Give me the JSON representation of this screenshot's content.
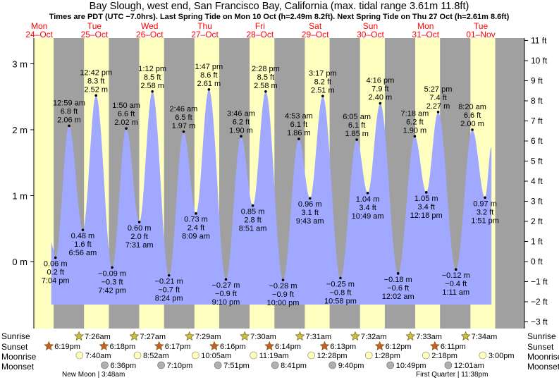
{
  "title": "Bay Slough, west end, San Francisco Bay, California (max. tidal range 3.61m 11.8ft)",
  "subtitle": "Times are PDT (UTC −7.0hrs). Last Spring Tide on Mon 10 Oct (h=2.49m 8.2ft). Next Spring Tide on Thu 27 Oct (h=2.61m 8.6ft)",
  "colors": {
    "water": "#a0a8ff",
    "day": "#ffffc0",
    "night": "#a0a0a0",
    "daylabel": "#ff0000",
    "sun": "#c8c040",
    "sunset": "#c86020",
    "moon": "#ffffc0",
    "moonset": "#b0b0b0"
  },
  "days": [
    {
      "dow": "Mon",
      "date": "24–Oct"
    },
    {
      "dow": "Tue",
      "date": "25–Oct"
    },
    {
      "dow": "Wed",
      "date": "26–Oct"
    },
    {
      "dow": "Thu",
      "date": "27–Oct"
    },
    {
      "dow": "Fri",
      "date": "28–Oct"
    },
    {
      "dow": "Sat",
      "date": "29–Oct"
    },
    {
      "dow": "Sun",
      "date": "30–Oct"
    },
    {
      "dow": "Mon",
      "date": "31–Oct"
    },
    {
      "dow": "Tue",
      "date": "01–Nov"
    }
  ],
  "row_labels": {
    "sunrise": "Sunrise",
    "sunset": "Sunset",
    "moonrise": "Moonrise",
    "moonset": "Moonset"
  },
  "sunrise": [
    "7:26am",
    "7:27am",
    "7:29am",
    "7:30am",
    "7:31am",
    "7:32am",
    "7:33am",
    "7:34am"
  ],
  "sunset": [
    "6:19pm",
    "6:18pm",
    "6:17pm",
    "6:16pm",
    "6:14pm",
    "6:13pm",
    "6:12pm",
    "6:11pm"
  ],
  "moonrise": [
    "7:40am",
    "8:52am",
    "10:05am",
    "11:19am",
    "12:28pm",
    "1:28pm",
    "2:18pm",
    "3:00pm"
  ],
  "moonset": [
    "6:36pm",
    "7:10pm",
    "7:51pm",
    "8:41pm",
    "9:40pm",
    "10:49pm",
    "12:01am"
  ],
  "moon_phases": [
    "New Moon | 3:48am",
    "First Quarter | 11:38pm"
  ],
  "chart_data": {
    "type": "area",
    "title": "Bay Slough, west end, San Francisco Bay, California (max. tidal range 3.61m 11.8ft)",
    "y_left_unit": "m",
    "y_left_ticks": [
      "0 m",
      "1 m",
      "2 m",
      "3 m"
    ],
    "y_right_unit": "ft",
    "y_right_ticks": [
      "−3 ft",
      "−2 ft",
      "−1 ft",
      "0 ft",
      "1 ft",
      "2 ft",
      "3 ft",
      "4 ft",
      "5 ft",
      "6 ft",
      "7 ft",
      "8 ft",
      "9 ft",
      "10 ft",
      "11 ft"
    ],
    "x_range": [
      "24-Oct",
      "01-Nov"
    ],
    "tides": [
      {
        "day": 0,
        "time": "7:04 pm",
        "m": "0.06 m",
        "ft": "0.2 ft",
        "hours": 19.07,
        "h": 0.06,
        "label": "below"
      },
      {
        "day": 1,
        "time": "12:59 am",
        "m": "2.06 m",
        "ft": "6.8 ft",
        "hours": 0.98,
        "h": 2.06,
        "label": "above"
      },
      {
        "day": 1,
        "time": "6:56 am",
        "m": "0.48 m",
        "ft": "1.6 ft",
        "hours": 6.93,
        "h": 0.48,
        "label": "below"
      },
      {
        "day": 1,
        "time": "12:42 pm",
        "m": "2.52 m",
        "ft": "8.3 ft",
        "hours": 12.7,
        "h": 2.52,
        "label": "above"
      },
      {
        "day": 1,
        "time": "7:42 pm",
        "m": "−0.09 m",
        "ft": "−0.3 ft",
        "hours": 19.7,
        "h": -0.09,
        "label": "below"
      },
      {
        "day": 2,
        "time": "1:50 am",
        "m": "2.02 m",
        "ft": "6.6 ft",
        "hours": 1.83,
        "h": 2.02,
        "label": "above"
      },
      {
        "day": 2,
        "time": "7:31 am",
        "m": "0.60 m",
        "ft": "2.0 ft",
        "hours": 7.52,
        "h": 0.6,
        "label": "below"
      },
      {
        "day": 2,
        "time": "1:12 pm",
        "m": "2.58 m",
        "ft": "8.5 ft",
        "hours": 13.2,
        "h": 2.58,
        "label": "above"
      },
      {
        "day": 2,
        "time": "8:24 pm",
        "m": "−0.21 m",
        "ft": "−0.7 ft",
        "hours": 20.4,
        "h": -0.21,
        "label": "below"
      },
      {
        "day": 3,
        "time": "2:46 am",
        "m": "1.97 m",
        "ft": "6.5 ft",
        "hours": 2.77,
        "h": 1.97,
        "label": "above"
      },
      {
        "day": 3,
        "time": "8:09 am",
        "m": "0.73 m",
        "ft": "2.4 ft",
        "hours": 8.15,
        "h": 0.73,
        "label": "below"
      },
      {
        "day": 3,
        "time": "1:47 pm",
        "m": "2.61 m",
        "ft": "8.6 ft",
        "hours": 13.78,
        "h": 2.61,
        "label": "above"
      },
      {
        "day": 3,
        "time": "9:10 pm",
        "m": "−0.27 m",
        "ft": "−0.9 ft",
        "hours": 21.17,
        "h": -0.27,
        "label": "below"
      },
      {
        "day": 4,
        "time": "3:46 am",
        "m": "1.90 m",
        "ft": "6.2 ft",
        "hours": 3.77,
        "h": 1.9,
        "label": "above"
      },
      {
        "day": 4,
        "time": "8:51 am",
        "m": "0.85 m",
        "ft": "2.8 ft",
        "hours": 8.85,
        "h": 0.85,
        "label": "below"
      },
      {
        "day": 4,
        "time": "2:28 pm",
        "m": "2.58 m",
        "ft": "8.5 ft",
        "hours": 14.47,
        "h": 2.58,
        "label": "above"
      },
      {
        "day": 4,
        "time": "10:00 pm",
        "m": "−0.28 m",
        "ft": "−0.9 ft",
        "hours": 22.0,
        "h": -0.28,
        "label": "below"
      },
      {
        "day": 5,
        "time": "4:53 am",
        "m": "1.86 m",
        "ft": "6.1 ft",
        "hours": 4.88,
        "h": 1.86,
        "label": "above"
      },
      {
        "day": 5,
        "time": "9:43 am",
        "m": "0.96 m",
        "ft": "3.1 ft",
        "hours": 9.72,
        "h": 0.96,
        "label": "below"
      },
      {
        "day": 5,
        "time": "3:17 pm",
        "m": "2.51 m",
        "ft": "8.2 ft",
        "hours": 15.28,
        "h": 2.51,
        "label": "above"
      },
      {
        "day": 5,
        "time": "10:58 pm",
        "m": "−0.25 m",
        "ft": "−0.8 ft",
        "hours": 22.97,
        "h": -0.25,
        "label": "below"
      },
      {
        "day": 6,
        "time": "6:05 am",
        "m": "1.85 m",
        "ft": "6.1 ft",
        "hours": 6.08,
        "h": 1.85,
        "label": "above"
      },
      {
        "day": 6,
        "time": "10:49 am",
        "m": "1.04 m",
        "ft": "3.4 ft",
        "hours": 10.82,
        "h": 1.04,
        "label": "below"
      },
      {
        "day": 6,
        "time": "4:16 pm",
        "m": "2.40 m",
        "ft": "7.9 ft",
        "hours": 16.27,
        "h": 2.4,
        "label": "above"
      },
      {
        "day": 7,
        "time": "12:02 am",
        "m": "−0.18 m",
        "ft": "−0.6 ft",
        "hours": 0.03,
        "h": -0.18,
        "label": "below"
      },
      {
        "day": 7,
        "time": "7:18 am",
        "m": "1.90 m",
        "ft": "6.2 ft",
        "hours": 7.3,
        "h": 1.9,
        "label": "above"
      },
      {
        "day": 7,
        "time": "12:18 pm",
        "m": "1.05 m",
        "ft": "3.4 ft",
        "hours": 12.3,
        "h": 1.05,
        "label": "below"
      },
      {
        "day": 7,
        "time": "5:27 pm",
        "m": "2.27 m",
        "ft": "7.4 ft",
        "hours": 17.45,
        "h": 2.27,
        "label": "above"
      },
      {
        "day": 8,
        "time": "1:11 am",
        "m": "−0.12 m",
        "ft": "−0.4 ft",
        "hours": 1.18,
        "h": -0.12,
        "label": "below"
      },
      {
        "day": 8,
        "time": "8:20 am",
        "m": "2.00 m",
        "ft": "6.6 ft",
        "hours": 8.33,
        "h": 2.0,
        "label": "above"
      },
      {
        "day": 8,
        "time": "1:51 pm",
        "m": "0.97 m",
        "ft": "3.2 ft",
        "hours": 13.85,
        "h": 0.97,
        "label": "below"
      }
    ]
  }
}
